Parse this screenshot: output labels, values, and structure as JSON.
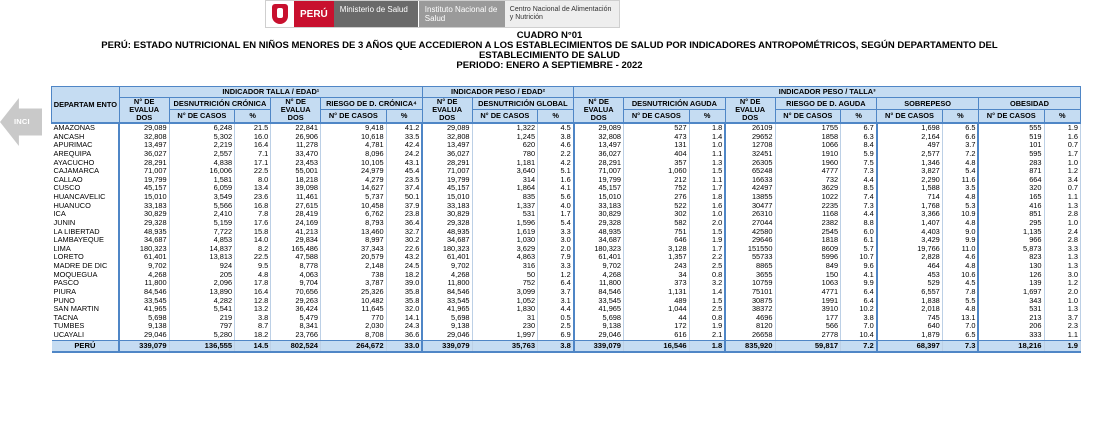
{
  "logos": {
    "peru": "PERÚ",
    "minsa": "Ministerio de Salud",
    "ins": "Instituto Nacional de Salud",
    "cenan": "Centro Nacional de Alimentación y Nutrición"
  },
  "title": {
    "line1": "CUADRO N°01",
    "line2": "PERÚ: ESTADO NUTRICIONAL EN NIÑOS MENORES DE 3 AÑOS QUE ACCEDIERON A LOS ESTABLECIMIENTOS DE SALUD POR INDICADORES ANTROPOMÉTRICOS, SEGÚN DEPARTAMENTO DEL",
    "line3": "ESTABLECIMIENTO DE SALUD",
    "line4": "PERIODO: ENERO A SEPTIEMBRE - 2022"
  },
  "nav": {
    "label": "INCI"
  },
  "headers": {
    "dept": "DEPARTAM ENTO",
    "grp_talla_edad": "INDICADOR TALLA / EDAD¹",
    "grp_peso_edad": "INDICADOR PESO / EDAD²",
    "grp_peso_talla": "INDICADOR PESO / TALLA³",
    "n_evaluados": "N° DE EVALUA DOS",
    "desn_cronica": "DESNUTRICIÓN CRÓNICA",
    "riesgo_cronica": "RIESGO DE D. CRÓNICA⁴",
    "desn_global": "DESNUTRICIÓN GLOBAL",
    "desn_aguda": "DESNUTRICIÓN AGUDA",
    "riesgo_aguda": "RIESGO DE D. AGUDA",
    "sobrepeso": "SOBREPESO",
    "obesidad": "OBESIDAD",
    "n_casos": "N° DE CASOS",
    "pct": "%"
  },
  "rows": [
    [
      "AMAZONAS",
      "29,089",
      "6,248",
      "21.5",
      "22,841",
      "9,418",
      "41.2",
      "29,089",
      "1,322",
      "4.5",
      "29,089",
      "527",
      "1.8",
      "26109",
      "1755",
      "6.7",
      "1,698",
      "6.5",
      "555",
      "1.9"
    ],
    [
      "ANCASH",
      "32,808",
      "5,302",
      "16.0",
      "26,906",
      "10,618",
      "33.5",
      "32,808",
      "1,245",
      "3.8",
      "32,808",
      "473",
      "1.4",
      "29652",
      "1858",
      "6.3",
      "2,164",
      "6.6",
      "519",
      "1.6"
    ],
    [
      "APURIMAC",
      "13,497",
      "2,219",
      "16.4",
      "11,278",
      "4,781",
      "42.4",
      "13,497",
      "620",
      "4.6",
      "13,497",
      "131",
      "1.0",
      "12708",
      "1066",
      "8.4",
      "497",
      "3.7",
      "101",
      "0.7"
    ],
    [
      "AREQUIPA",
      "36,027",
      "2,557",
      "7.1",
      "33,470",
      "8,096",
      "24.2",
      "36,027",
      "780",
      "2.2",
      "36,027",
      "404",
      "1.1",
      "32451",
      "1910",
      "5.9",
      "2,577",
      "7.2",
      "595",
      "1.7"
    ],
    [
      "AYACUCHO",
      "28,291",
      "4,838",
      "17.1",
      "23,453",
      "10,105",
      "43.1",
      "28,291",
      "1,181",
      "4.2",
      "28,291",
      "357",
      "1.3",
      "26305",
      "1960",
      "7.5",
      "1,346",
      "4.8",
      "283",
      "1.0"
    ],
    [
      "CAJAMARCA",
      "71,007",
      "16,006",
      "22.5",
      "55,001",
      "24,979",
      "45.4",
      "71,007",
      "3,640",
      "5.1",
      "71,007",
      "1,060",
      "1.5",
      "65248",
      "4777",
      "7.3",
      "3,827",
      "5.4",
      "871",
      "1.2"
    ],
    [
      "CALLAO",
      "19,799",
      "1,581",
      "8.0",
      "18,218",
      "4,279",
      "23.5",
      "19,799",
      "314",
      "1.6",
      "19,799",
      "212",
      "1.1",
      "16633",
      "732",
      "4.4",
      "2,290",
      "11.6",
      "664",
      "3.4"
    ],
    [
      "CUSCO",
      "45,157",
      "6,059",
      "13.4",
      "39,098",
      "14,627",
      "37.4",
      "45,157",
      "1,864",
      "4.1",
      "45,157",
      "752",
      "1.7",
      "42497",
      "3629",
      "8.5",
      "1,588",
      "3.5",
      "320",
      "0.7"
    ],
    [
      "HUANCAVELIC",
      "15,010",
      "3,549",
      "23.6",
      "11,461",
      "5,737",
      "50.1",
      "15,010",
      "835",
      "5.6",
      "15,010",
      "276",
      "1.8",
      "13855",
      "1022",
      "7.4",
      "714",
      "4.8",
      "165",
      "1.1"
    ],
    [
      "HUANUCO",
      "33,183",
      "5,566",
      "16.8",
      "27,615",
      "10,458",
      "37.9",
      "33,183",
      "1,337",
      "4.0",
      "33,183",
      "522",
      "1.6",
      "30477",
      "2235",
      "7.3",
      "1,768",
      "5.3",
      "416",
      "1.3"
    ],
    [
      "ICA",
      "30,829",
      "2,410",
      "7.8",
      "28,419",
      "6,762",
      "23.8",
      "30,829",
      "531",
      "1.7",
      "30,829",
      "302",
      "1.0",
      "26310",
      "1168",
      "4.4",
      "3,366",
      "10.9",
      "851",
      "2.8"
    ],
    [
      "JUNIN",
      "29,328",
      "5,159",
      "17.6",
      "24,169",
      "8,793",
      "36.4",
      "29,328",
      "1,596",
      "5.4",
      "29,328",
      "582",
      "2.0",
      "27044",
      "2382",
      "8.8",
      "1,407",
      "4.8",
      "295",
      "1.0"
    ],
    [
      "LA LIBERTAD",
      "48,935",
      "7,722",
      "15.8",
      "41,213",
      "13,460",
      "32.7",
      "48,935",
      "1,619",
      "3.3",
      "48,935",
      "751",
      "1.5",
      "42580",
      "2545",
      "6.0",
      "4,403",
      "9.0",
      "1,135",
      "2.4"
    ],
    [
      "LAMBAYEQUE",
      "34,687",
      "4,853",
      "14.0",
      "29,834",
      "8,997",
      "30.2",
      "34,687",
      "1,030",
      "3.0",
      "34,687",
      "646",
      "1.9",
      "29646",
      "1818",
      "6.1",
      "3,429",
      "9.9",
      "966",
      "2.8"
    ],
    [
      "LIMA",
      "180,323",
      "14,837",
      "8.2",
      "165,486",
      "37,343",
      "22.6",
      "180,323",
      "3,629",
      "2.0",
      "180,323",
      "3,128",
      "1.7",
      "151550",
      "8609",
      "5.7",
      "19,766",
      "11.0",
      "5,873",
      "3.3"
    ],
    [
      "LORETO",
      "61,401",
      "13,813",
      "22.5",
      "47,588",
      "20,579",
      "43.2",
      "61,401",
      "4,863",
      "7.9",
      "61,401",
      "1,357",
      "2.2",
      "55733",
      "5996",
      "10.7",
      "2,828",
      "4.6",
      "823",
      "1.3"
    ],
    [
      "MADRE DE DIC",
      "9,702",
      "924",
      "9.5",
      "8,778",
      "2,148",
      "24.5",
      "9,702",
      "316",
      "3.3",
      "9,702",
      "243",
      "2.5",
      "8865",
      "849",
      "9.6",
      "464",
      "4.8",
      "130",
      "1.3"
    ],
    [
      "MOQUEGUA",
      "4,268",
      "205",
      "4.8",
      "4,063",
      "738",
      "18.2",
      "4,268",
      "50",
      "1.2",
      "4,268",
      "34",
      "0.8",
      "3655",
      "150",
      "4.1",
      "453",
      "10.6",
      "126",
      "3.0"
    ],
    [
      "PASCO",
      "11,800",
      "2,096",
      "17.8",
      "9,704",
      "3,787",
      "39.0",
      "11,800",
      "752",
      "6.4",
      "11,800",
      "373",
      "3.2",
      "10759",
      "1063",
      "9.9",
      "529",
      "4.5",
      "139",
      "1.2"
    ],
    [
      "PIURA",
      "84,546",
      "13,890",
      "16.4",
      "70,656",
      "25,326",
      "35.8",
      "84,546",
      "3,099",
      "3.7",
      "84,546",
      "1,131",
      "1.4",
      "75101",
      "4771",
      "6.4",
      "6,557",
      "7.8",
      "1,697",
      "2.0"
    ],
    [
      "PUNO",
      "33,545",
      "4,282",
      "12.8",
      "29,263",
      "10,482",
      "35.8",
      "33,545",
      "1,052",
      "3.1",
      "33,545",
      "489",
      "1.5",
      "30875",
      "1991",
      "6.4",
      "1,838",
      "5.5",
      "343",
      "1.0"
    ],
    [
      "SAN MARTIN",
      "41,965",
      "5,541",
      "13.2",
      "36,424",
      "11,645",
      "32.0",
      "41,965",
      "1,830",
      "4.4",
      "41,965",
      "1,044",
      "2.5",
      "38372",
      "3910",
      "10.2",
      "2,018",
      "4.8",
      "531",
      "1.3"
    ],
    [
      "TACNA",
      "5,698",
      "219",
      "3.8",
      "5,479",
      "770",
      "14.1",
      "5,698",
      "31",
      "0.5",
      "5,698",
      "44",
      "0.8",
      "4696",
      "177",
      "3.8",
      "745",
      "13.1",
      "213",
      "3.7"
    ],
    [
      "TUMBES",
      "9,138",
      "797",
      "8.7",
      "8,341",
      "2,030",
      "24.3",
      "9,138",
      "230",
      "2.5",
      "9,138",
      "172",
      "1.9",
      "8120",
      "566",
      "7.0",
      "640",
      "7.0",
      "206",
      "2.3"
    ],
    [
      "UCAYALI",
      "29,046",
      "5,280",
      "18.2",
      "23,766",
      "8,708",
      "36.6",
      "29,046",
      "1,997",
      "6.9",
      "29,046",
      "616",
      "2.1",
      "26658",
      "2778",
      "10.4",
      "1,879",
      "6.5",
      "333",
      "1.1"
    ]
  ],
  "total": [
    "PERÚ",
    "339,079",
    "136,555",
    "14.5",
    "802,524",
    "264,672",
    "33.0",
    "339,079",
    "35,763",
    "3.8",
    "339,079",
    "16,546",
    "1.8",
    "835,920",
    "59,817",
    "7.2",
    "68,397",
    "7.3",
    "18,216",
    "1.9"
  ]
}
